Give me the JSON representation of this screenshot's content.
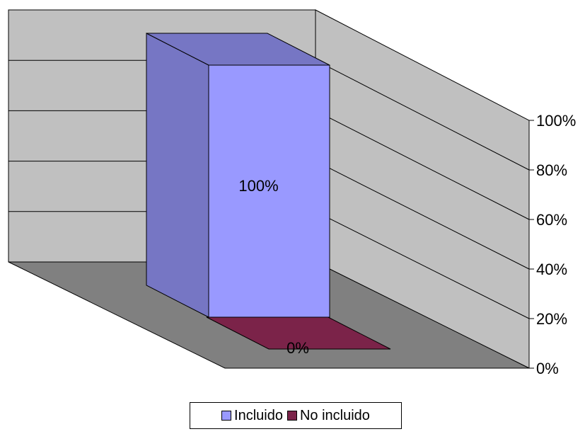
{
  "chart_data": {
    "type": "bar",
    "variant": "3d-column",
    "categories": [
      "Incluido",
      "No incluido"
    ],
    "values": [
      100,
      0
    ],
    "data_labels": [
      "100%",
      "0%"
    ],
    "colors": {
      "Incluido": "#9999ff",
      "No incluido": "#7b2349"
    },
    "ytick_labels": [
      "100%",
      "80%",
      "60%",
      "40%",
      "20%",
      "0%"
    ],
    "ylim": [
      0,
      100
    ],
    "y_unit": "%",
    "title": "",
    "xlabel": "",
    "ylabel": "",
    "grid": true,
    "legend": {
      "position": "bottom",
      "entries": [
        "Incluido",
        "No incluido"
      ]
    }
  }
}
